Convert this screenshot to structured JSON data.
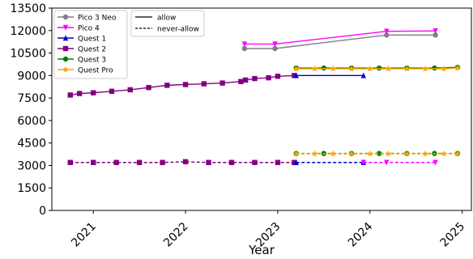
{
  "chart_data": {
    "type": "line",
    "title": "",
    "xlabel": "Year",
    "ylabel": "",
    "xlim": [
      2020.55,
      2025.1
    ],
    "ylim": [
      0,
      13500
    ],
    "x_ticks": [
      2021,
      2022,
      2023,
      2024,
      2025
    ],
    "x_tick_labels": [
      "2021",
      "2022",
      "2023",
      "2024",
      "2025"
    ],
    "y_ticks": [
      0,
      1500,
      3000,
      4500,
      6000,
      7500,
      9000,
      10500,
      12000,
      13500
    ],
    "y_tick_labels": [
      "0",
      "1500",
      "3000",
      "4500",
      "6000",
      "7500",
      "9000",
      "10500",
      "12000",
      "13500"
    ],
    "grid": false,
    "legend_placement": "top-left",
    "legend_devices": [
      {
        "name": "Pico 3 Neo",
        "color": "#808080",
        "marker": "circle"
      },
      {
        "name": "Pico 4",
        "color": "#ff00ff",
        "marker": "triangle-down"
      },
      {
        "name": "Quest 1",
        "color": "#0000cd",
        "marker": "triangle-up"
      },
      {
        "name": "Quest 2",
        "color": "#800080",
        "marker": "square"
      },
      {
        "name": "Quest 3",
        "color": "#008000",
        "marker": "circle"
      },
      {
        "name": "Quest Pro",
        "color": "#ffa500",
        "marker": "star"
      }
    ],
    "legend_styles": [
      {
        "name": "allow",
        "dash": "solid"
      },
      {
        "name": "never-allow",
        "dash": "dashed"
      }
    ],
    "series": [
      {
        "device": "Quest 2",
        "style": "allow",
        "color": "#800080",
        "marker": "square",
        "x": [
          2020.75,
          2020.85,
          2021.0,
          2021.2,
          2021.4,
          2021.6,
          2021.8,
          2022.0,
          2022.2,
          2022.4,
          2022.6,
          2022.65,
          2022.75,
          2022.9,
          2023.0,
          2023.18
        ],
        "y": [
          7700,
          7800,
          7850,
          7950,
          8050,
          8200,
          8350,
          8400,
          8450,
          8500,
          8600,
          8700,
          8800,
          8850,
          8950,
          9000
        ]
      },
      {
        "device": "Quest 2",
        "style": "never-allow",
        "color": "#800080",
        "marker": "square",
        "x": [
          2020.75,
          2021.0,
          2021.25,
          2021.5,
          2021.75,
          2022.0,
          2022.25,
          2022.5,
          2022.75,
          2023.0,
          2023.18
        ],
        "y": [
          3200,
          3200,
          3200,
          3200,
          3200,
          3250,
          3200,
          3200,
          3200,
          3200,
          3200
        ]
      },
      {
        "device": "Quest 1",
        "style": "allow",
        "color": "#0000cd",
        "marker": "triangle-up",
        "x": [
          2023.2,
          2023.93
        ],
        "y": [
          9000,
          9000
        ]
      },
      {
        "device": "Quest 1",
        "style": "never-allow",
        "color": "#0000cd",
        "marker": "triangle-up",
        "x": [
          2023.2,
          2023.93
        ],
        "y": [
          3200,
          3200
        ]
      },
      {
        "device": "Pico 3 Neo",
        "style": "allow",
        "color": "#808080",
        "marker": "circle",
        "x": [
          2022.64,
          2022.97,
          2024.18,
          2024.71
        ],
        "y": [
          10800,
          10800,
          11700,
          11700
        ]
      },
      {
        "device": "Pico 4",
        "style": "allow",
        "color": "#ff00ff",
        "marker": "triangle-down",
        "x": [
          2022.64,
          2022.97,
          2024.18,
          2024.71
        ],
        "y": [
          11100,
          11100,
          11950,
          11980
        ]
      },
      {
        "device": "Pico 4",
        "style": "never-allow",
        "color": "#ff00ff",
        "marker": "triangle-down",
        "x": [
          2023.93,
          2024.18,
          2024.71
        ],
        "y": [
          3200,
          3200,
          3200
        ]
      },
      {
        "device": "Quest 3",
        "style": "allow",
        "color": "#008000",
        "marker": "circle",
        "x": [
          2023.2,
          2023.5,
          2023.8,
          2024.1,
          2024.4,
          2024.7,
          2024.95
        ],
        "y": [
          9500,
          9500,
          9500,
          9500,
          9500,
          9500,
          9550
        ]
      },
      {
        "device": "Quest 3",
        "style": "never-allow",
        "color": "#008000",
        "marker": "circle",
        "x": [
          2023.2,
          2023.5,
          2023.8,
          2024.1,
          2024.4,
          2024.7,
          2024.95
        ],
        "y": [
          3800,
          3800,
          3800,
          3800,
          3800,
          3800,
          3800
        ]
      },
      {
        "device": "Quest Pro",
        "style": "allow",
        "color": "#ffa500",
        "marker": "star",
        "x": [
          2023.2,
          2023.4,
          2023.6,
          2023.8,
          2024.0,
          2024.2,
          2024.4,
          2024.6,
          2024.8,
          2024.95
        ],
        "y": [
          9450,
          9450,
          9450,
          9450,
          9450,
          9450,
          9450,
          9450,
          9450,
          9500
        ]
      },
      {
        "device": "Quest Pro",
        "style": "never-allow",
        "color": "#ffa500",
        "marker": "star",
        "x": [
          2023.2,
          2023.4,
          2023.6,
          2023.8,
          2024.0,
          2024.2,
          2024.4,
          2024.6,
          2024.8,
          2024.95
        ],
        "y": [
          3780,
          3780,
          3780,
          3780,
          3780,
          3780,
          3780,
          3780,
          3780,
          3780
        ]
      }
    ]
  }
}
